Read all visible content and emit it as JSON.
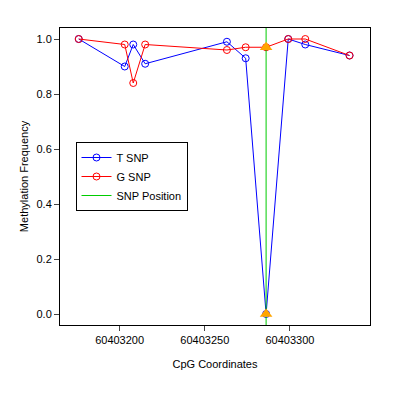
{
  "chart_data": {
    "type": "line",
    "x_label": "CpG Coordinates",
    "y_label": "Methylation Frequency",
    "x": [
      60403176,
      60403203,
      60403208,
      60403215,
      60403263,
      60403274,
      60403286,
      60403299,
      60403309,
      60403335
    ],
    "series": [
      {
        "name": "T SNP",
        "color": "#0000ff",
        "marker": "circle-open",
        "values": [
          1.0,
          0.9,
          0.98,
          0.91,
          0.99,
          0.93,
          0.0,
          1.0,
          0.98,
          0.94
        ]
      },
      {
        "name": "G SNP",
        "color": "#ff0000",
        "marker": "circle-open",
        "values": [
          1.0,
          0.98,
          0.84,
          0.98,
          0.96,
          0.97,
          0.97,
          1.0,
          1.0,
          0.94
        ]
      },
      {
        "name": "SNP Position",
        "type": "vline",
        "color": "#00cc00",
        "x": 60403286
      }
    ],
    "snp_marker": {
      "marker": "triangle-up",
      "color": "#ffa500"
    },
    "xlim": [
      60403165,
      60403347
    ],
    "xticks": [
      60403200,
      60403250,
      60403300
    ],
    "ylim": [
      -0.04,
      1.04
    ],
    "yticks": [
      {
        "value": 0,
        "label": "0.0"
      },
      {
        "value": 0.2,
        "label": "0.2"
      },
      {
        "value": 0.4,
        "label": "0.4"
      },
      {
        "value": 0.6,
        "label": "0.6"
      },
      {
        "value": 0.8,
        "label": "0.8"
      },
      {
        "value": 1,
        "label": "1.0"
      }
    ],
    "grid": false,
    "legend": "left"
  }
}
